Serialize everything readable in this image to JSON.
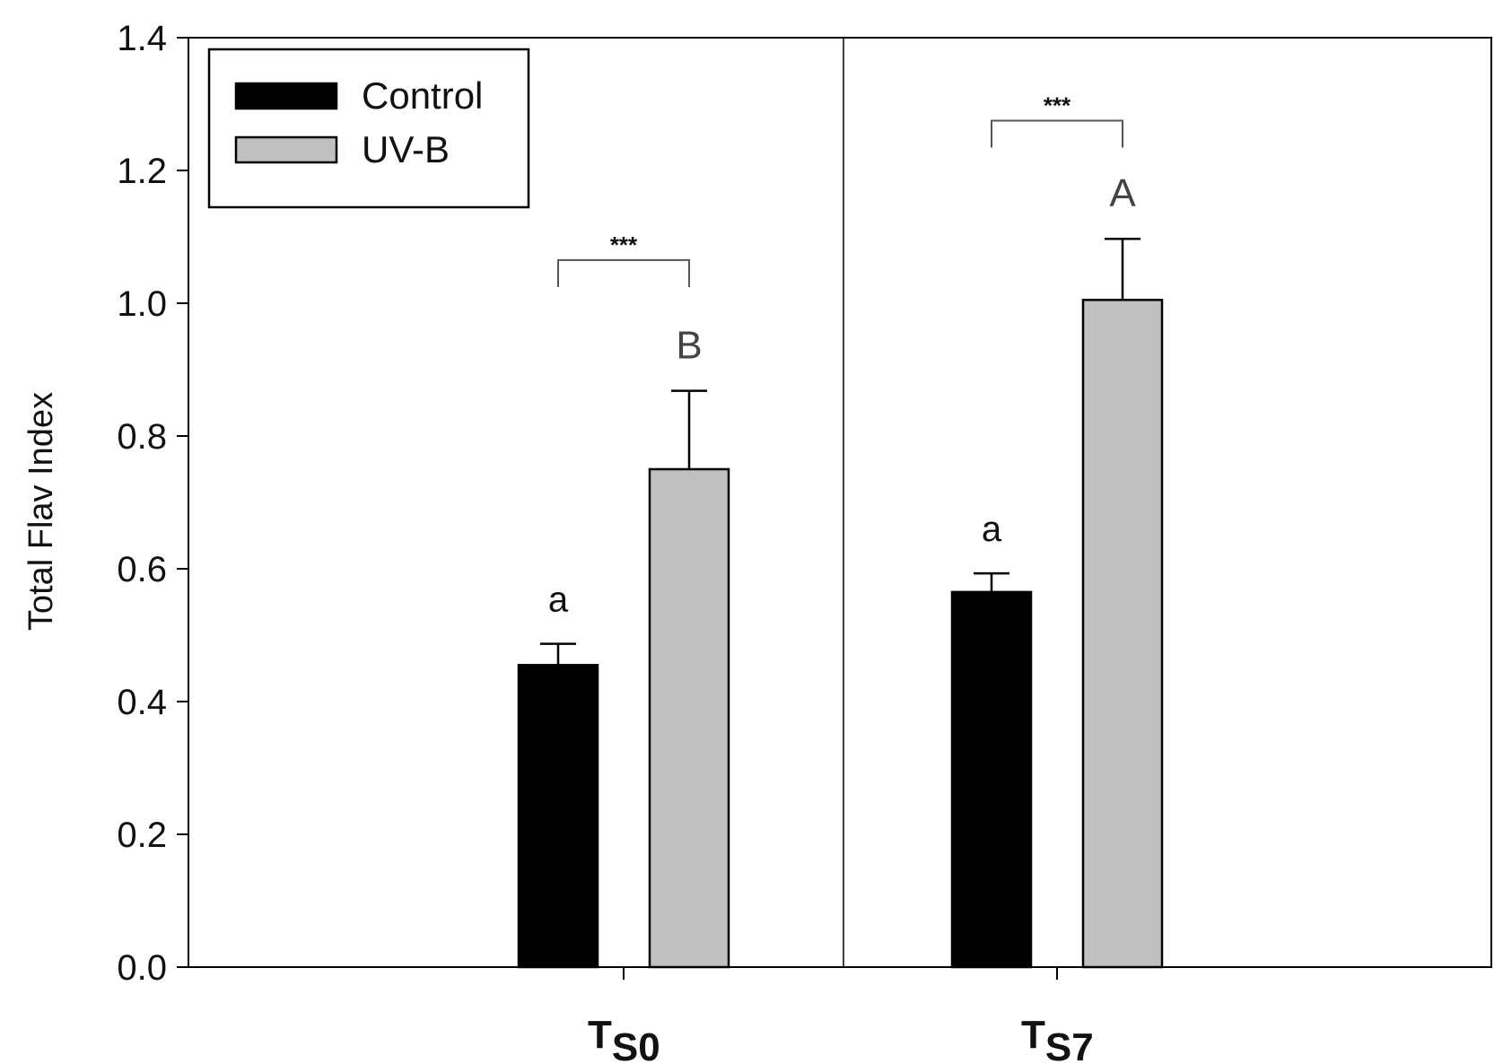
{
  "chart_data": {
    "type": "bar",
    "title": "",
    "xlabel": "",
    "ylabel": "Total Flav Index",
    "ylim": [
      0,
      1.4
    ],
    "yticks": [
      "0.0",
      "0.2",
      "0.4",
      "0.6",
      "0.8",
      "1.0",
      "1.2",
      "1.4"
    ],
    "categories": [
      {
        "main": "T",
        "sub": "S0"
      },
      {
        "main": "T",
        "sub": "S7"
      }
    ],
    "series": [
      {
        "name": "Control",
        "color": "#000000",
        "values": [
          0.455,
          0.565
        ],
        "errors": [
          0.032,
          0.028
        ],
        "letters": [
          "a",
          "a"
        ]
      },
      {
        "name": "UV-B",
        "color": "#c0c0c0",
        "values": [
          0.75,
          1.005
        ],
        "errors": [
          0.118,
          0.092
        ],
        "letters": [
          "B",
          "A"
        ]
      }
    ],
    "significance": [
      {
        "category": 0,
        "label": "***",
        "level": 1.065
      },
      {
        "category": 1,
        "label": "***",
        "level": 1.275
      }
    ],
    "legend": {
      "position": "top-left",
      "entries": [
        {
          "label": "Control",
          "color": "#000000"
        },
        {
          "label": "UV-B",
          "color": "#c0c0c0"
        }
      ]
    }
  }
}
